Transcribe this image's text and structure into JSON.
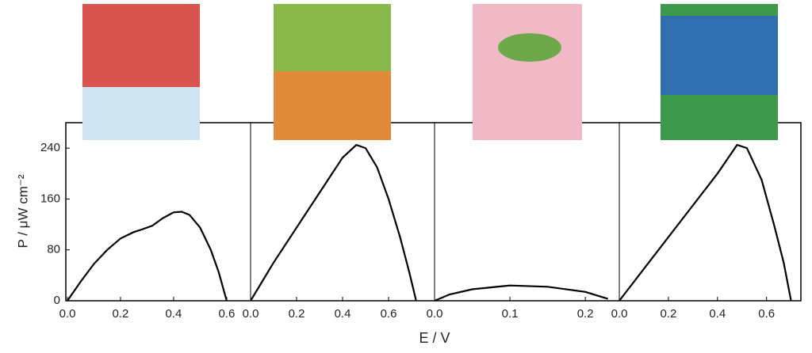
{
  "chart_data": [
    {
      "type": "line",
      "y_label": "P / μW cm⁻²",
      "ylim": [
        0,
        280
      ],
      "yticks": [
        0,
        80,
        160,
        240
      ],
      "xlim": [
        0,
        0.69
      ],
      "xticks": [
        {
          "value": 0,
          "label": "0.0"
        },
        0.2,
        0.4,
        0.6
      ],
      "x": [
        0,
        0.05,
        0.1,
        0.15,
        0.2,
        0.25,
        0.28,
        0.32,
        0.36,
        0.4,
        0.43,
        0.46,
        0.5,
        0.54,
        0.57,
        0.59,
        0.6
      ],
      "values": [
        0,
        30,
        58,
        80,
        98,
        108,
        112,
        118,
        130,
        139,
        140,
        135,
        115,
        80,
        45,
        15,
        0
      ],
      "color": "#000000"
    },
    {
      "type": "line",
      "x_label": "E / V",
      "ylim": [
        0,
        280
      ],
      "xlim": [
        0,
        0.8
      ],
      "xticks": [
        {
          "value": 0,
          "label": "0.0"
        },
        0.2,
        0.4,
        0.6
      ],
      "x": [
        0,
        0.1,
        0.2,
        0.3,
        0.4,
        0.46,
        0.5,
        0.55,
        0.6,
        0.65,
        0.69,
        0.72
      ],
      "values": [
        0,
        60,
        115,
        170,
        225,
        245,
        240,
        210,
        160,
        100,
        45,
        0
      ],
      "color": "#000000"
    },
    {
      "type": "line",
      "ylim": [
        0,
        280
      ],
      "xlim": [
        0,
        0.244
      ],
      "xticks": [
        {
          "value": 0,
          "label": "0.0"
        },
        0.1,
        0.2
      ],
      "x": [
        0,
        0.02,
        0.05,
        0.1,
        0.15,
        0.2,
        0.23
      ],
      "values": [
        0,
        10,
        18,
        24,
        22,
        14,
        3
      ],
      "color": "#000000"
    },
    {
      "type": "line",
      "ylim": [
        0,
        280
      ],
      "xlim": [
        0,
        0.74
      ],
      "xticks": [
        {
          "value": 0,
          "label": "0.0"
        },
        0.2,
        0.4,
        0.6
      ],
      "x": [
        0,
        0.1,
        0.2,
        0.3,
        0.4,
        0.48,
        0.52,
        0.58,
        0.63,
        0.67,
        0.7
      ],
      "values": [
        0,
        50,
        100,
        150,
        200,
        245,
        240,
        190,
        120,
        60,
        0
      ],
      "color": "#000000"
    }
  ]
}
